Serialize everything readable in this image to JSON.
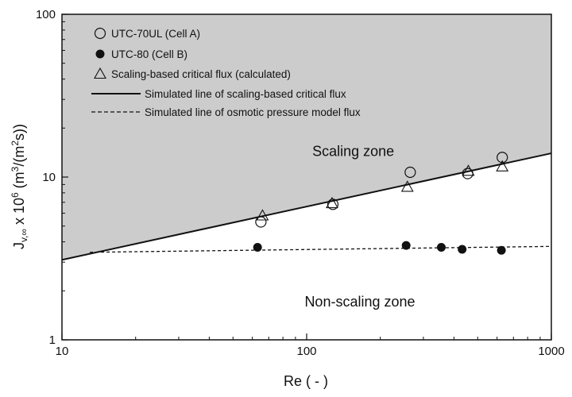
{
  "chart_data": {
    "type": "scatter",
    "x_scale": "log",
    "y_scale": "log",
    "xlim": [
      10,
      1000
    ],
    "ylim": [
      1,
      100
    ],
    "xlabel": "Re ( - )",
    "ylabel": {
      "main": "J",
      "sub": "v,∞",
      "rest_pre": " x 10",
      "sup1": "6",
      "rest_mid": " (m",
      "sup2": "3",
      "rest_mid2": "/(m",
      "sup3": "2",
      "rest_end": "s))"
    },
    "x_ticks": [
      {
        "value": 10,
        "label": "10"
      },
      {
        "value": 100,
        "label": "100"
      },
      {
        "value": 1000,
        "label": "1000"
      }
    ],
    "y_ticks": [
      {
        "value": 1,
        "label": "1"
      },
      {
        "value": 10,
        "label": "10"
      },
      {
        "value": 100,
        "label": "100"
      }
    ],
    "series": [
      {
        "name": "UTC-70UL (Cell A)",
        "marker": "open-circle",
        "points": [
          [
            65,
            5.3
          ],
          [
            128,
            6.8
          ],
          [
            265,
            10.7
          ],
          [
            455,
            10.5
          ],
          [
            630,
            13.2
          ]
        ]
      },
      {
        "name": "UTC-80 (Cell B)",
        "marker": "filled-circle",
        "points": [
          [
            63,
            3.7
          ],
          [
            255,
            3.8
          ],
          [
            355,
            3.7
          ],
          [
            432,
            3.6
          ],
          [
            625,
            3.55
          ]
        ]
      },
      {
        "name": "Scaling-based critical flux (calculated)",
        "marker": "open-triangle",
        "points": [
          [
            66,
            5.8
          ],
          [
            127,
            6.9
          ],
          [
            258,
            8.7
          ],
          [
            458,
            10.9
          ],
          [
            630,
            11.6
          ]
        ]
      },
      {
        "name": "Simulated line of scaling-based critical flux",
        "style": "solid-line",
        "points": [
          [
            10,
            3.1
          ],
          [
            1000,
            14.0
          ]
        ]
      },
      {
        "name": "Simulated line of osmotic pressure model flux",
        "style": "dashed-line",
        "points": [
          [
            13,
            3.45
          ],
          [
            1000,
            3.75
          ]
        ]
      }
    ],
    "annotations": [
      {
        "text": "Scaling zone",
        "x": 155,
        "y": 13.5
      },
      {
        "text": "Non-scaling zone",
        "x": 165,
        "y": 1.6
      }
    ],
    "legend_position": "top-left",
    "grid": false,
    "colors": {
      "scaling_zone_fill": "#cccccc",
      "marker": "#111111",
      "line": "#111111"
    }
  }
}
